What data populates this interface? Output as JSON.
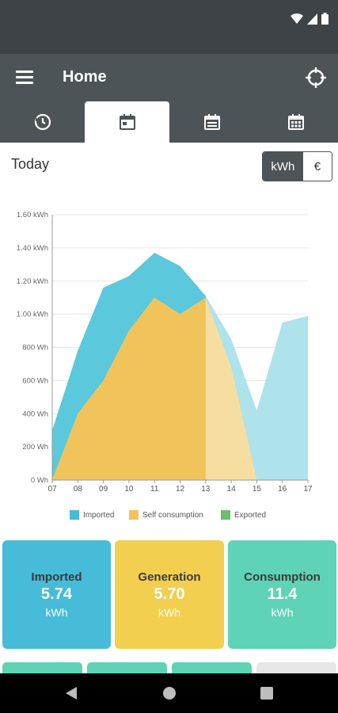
{
  "appbar": {
    "title": "Home"
  },
  "tabs": [
    {
      "name": "history-icon"
    },
    {
      "name": "calendar-day-icon"
    },
    {
      "name": "calendar-month-icon"
    },
    {
      "name": "calendar-year-icon"
    }
  ],
  "period": {
    "label": "Today"
  },
  "unit_toggle": {
    "selected": "kWh",
    "other": "€"
  },
  "chart_data": {
    "type": "area",
    "x": [
      "07",
      "08",
      "09",
      "10",
      "11",
      "12",
      "13",
      "14",
      "15",
      "16",
      "17"
    ],
    "ylim": [
      0,
      1600
    ],
    "y_ticks": [
      "0 Wh",
      "200 Wh",
      "400 Wh",
      "600 Wh",
      "800 Wh",
      "1.00 kWh",
      "1.20 kWh",
      "1.40 kWh",
      "1.60 kWh"
    ],
    "series": [
      {
        "name": "Imported",
        "color": "#5bc8dc",
        "values": [
          300,
          780,
          1160,
          1230,
          1370,
          1290,
          1110,
          850,
          420,
          950,
          990
        ]
      },
      {
        "name": "Self consumption",
        "color": "#f0c45a",
        "values": [
          0,
          400,
          600,
          900,
          1100,
          1000,
          1100,
          680,
          0,
          null,
          null
        ]
      },
      {
        "name": "Exported",
        "color": "#6bbf6b",
        "values": [
          0,
          0,
          0,
          0,
          0,
          0,
          0,
          0,
          0,
          0,
          0
        ]
      }
    ],
    "legend_position": "bottom",
    "grid": true
  },
  "legend": [
    {
      "label": "Imported",
      "color": "#46bcd9"
    },
    {
      "label": "Self consumption",
      "color": "#f0c45a"
    },
    {
      "label": "Exported",
      "color": "#6bbf6b"
    }
  ],
  "cards": [
    {
      "label": "Imported",
      "value": "5.74",
      "unit": "kWh",
      "color": "#46bcd9"
    },
    {
      "label": "Generation",
      "value": "5.70",
      "unit": "kWh",
      "color": "#f2cf4f"
    },
    {
      "label": "Consumption",
      "value": "11.4",
      "unit": "kWh",
      "color": "#5fd3b6"
    }
  ]
}
